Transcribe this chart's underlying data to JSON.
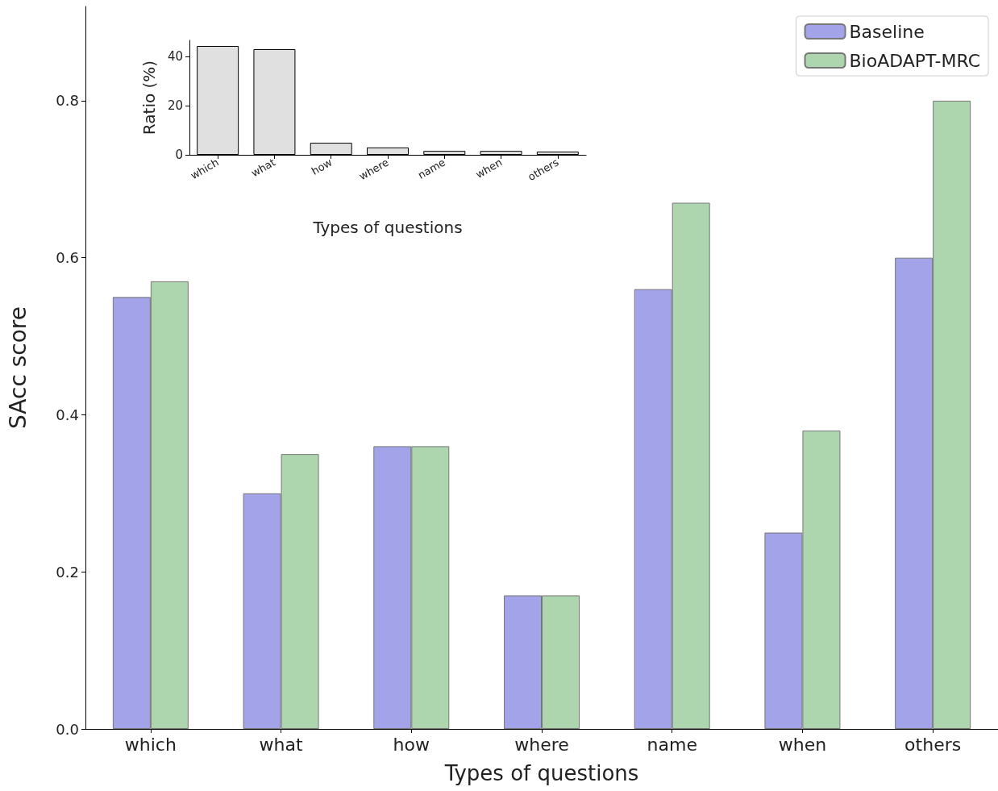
{
  "chart_data": [
    {
      "type": "bar",
      "xlabel": "Types of questions",
      "ylabel": "SAcc score",
      "categories": [
        "which",
        "what",
        "how",
        "where",
        "name",
        "when",
        "others"
      ],
      "series": [
        {
          "name": "Baseline",
          "color": "#a3a3ea",
          "values": [
            0.55,
            0.3,
            0.36,
            0.17,
            0.56,
            0.25,
            0.6
          ]
        },
        {
          "name": "BioADAPT-MRC",
          "color": "#aed6ae",
          "values": [
            0.57,
            0.35,
            0.36,
            0.17,
            0.67,
            0.38,
            0.8
          ]
        }
      ],
      "ylim": [
        0,
        0.92
      ],
      "yticks": [
        {
          "value": 0,
          "label": "0.0"
        },
        0.2,
        0.4,
        0.6,
        0.8
      ],
      "grid": false,
      "legend": "top right"
    },
    {
      "type": "bar",
      "xlabel": "Types of questions",
      "ylabel": "Ratio (%)",
      "categories": [
        "which",
        "what",
        "how",
        "where",
        "name",
        "when",
        "others"
      ],
      "series": [
        {
          "color": "#e0e0e0",
          "values": [
            44.3,
            43.0,
            4.9,
            3.0,
            1.6,
            1.6,
            1.3
          ]
        }
      ],
      "ylim": [
        0,
        46.6
      ],
      "yticks": [
        0,
        20,
        40
      ],
      "grid": false
    }
  ]
}
